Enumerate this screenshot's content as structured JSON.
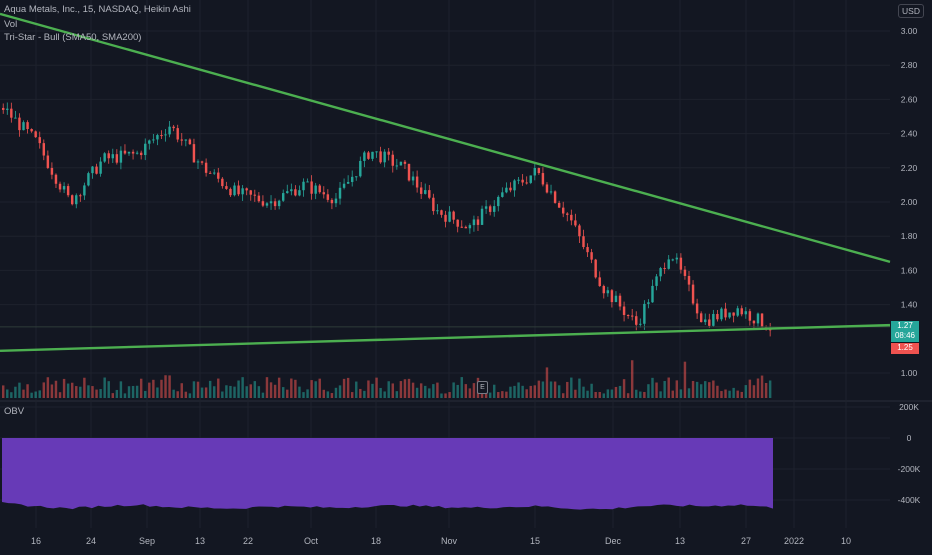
{
  "header": {
    "symbol_line": "Aqua Metals, Inc., 15, NASDAQ, Heikin Ashi",
    "volume_label": "Vol",
    "indicator_label": "Tri-Star - Bull (SMA50, SMA200)",
    "currency": "USD"
  },
  "price_tags": {
    "last_price": "1.27",
    "countdown": "08:46",
    "second_price": "1.25"
  },
  "earnings_marker": "E",
  "obv_pane": {
    "label": "OBV"
  },
  "colors": {
    "background": "#131722",
    "grid": "#1e222d",
    "up": "#26a69a",
    "down": "#ef5350",
    "trendline": "#4caf50",
    "obv_fill": "#673ab7",
    "axis_text": "#b2b5be",
    "horizontal_line": "#2e3d3a"
  },
  "chart_data": [
    {
      "type": "line",
      "title": "Aqua Metals, Inc., 15, NASDAQ, Heikin Ashi",
      "xlabel": "",
      "ylabel": "",
      "x_ticks": [
        "16",
        "24",
        "Sep",
        "13",
        "22",
        "Oct",
        "18",
        "Nov",
        "15",
        "Dec",
        "13",
        "27",
        "2022",
        "10"
      ],
      "y_ticks": [
        "3.00",
        "2.80",
        "2.60",
        "2.40",
        "2.20",
        "2.00",
        "1.80",
        "1.60",
        "1.40",
        "1.00"
      ],
      "ylim": [
        0.85,
        3.1
      ],
      "grid": true,
      "series": [
        {
          "style": "candles",
          "x": [
            "16",
            "",
            "24",
            "",
            "Sep",
            "",
            "13",
            "",
            "22",
            "",
            "Oct",
            "",
            "18",
            "",
            "Nov",
            "",
            "15",
            "",
            "Dec",
            "",
            "13",
            "",
            "27",
            ""
          ],
          "values": [
            2.55,
            2.35,
            2.0,
            2.25,
            2.28,
            2.45,
            2.2,
            2.05,
            2.0,
            2.1,
            2.02,
            2.3,
            2.2,
            1.95,
            1.85,
            2.05,
            2.18,
            1.9,
            1.5,
            1.28,
            1.72,
            1.3,
            1.38,
            1.27
          ]
        },
        {
          "style": "trendline",
          "x": [
            "start",
            "end"
          ],
          "values": [
            3.1,
            1.65
          ]
        },
        {
          "style": "trendline",
          "x": [
            "start",
            "end"
          ],
          "values": [
            1.13,
            1.28
          ]
        }
      ],
      "reference_lines": [
        1.27
      ]
    },
    {
      "type": "bar",
      "title": "Vol",
      "note_values": "volume bars per session, relative",
      "values": [
        0.3,
        0.6,
        0.4,
        0.8,
        0.3,
        0.5,
        0.35,
        0.7,
        0.4,
        0.45,
        0.3,
        0.9,
        0.5,
        0.35,
        0.4,
        0.6,
        0.55,
        0.4,
        1.0,
        0.7,
        0.5,
        0.4,
        0.8,
        0.6
      ]
    },
    {
      "type": "area",
      "title": "OBV",
      "y_ticks": [
        "200K",
        "0",
        "-200K",
        "-400K"
      ],
      "ylim": [
        -500000,
        250000
      ],
      "x_ticks": [
        "16",
        "24",
        "Sep",
        "13",
        "22",
        "Oct",
        "18",
        "Nov",
        "15",
        "Dec",
        "13",
        "27",
        "2022",
        "10"
      ],
      "values": [
        -420000,
        -440000,
        -455000,
        -440000,
        -430000,
        -445000,
        -450000,
        -455000,
        -440000,
        -445000,
        -450000,
        -440000,
        -435000,
        -445000,
        -450000,
        -445000,
        -440000,
        -455000,
        -460000,
        -440000,
        -435000,
        -440000,
        -430000,
        -450000
      ]
    }
  ]
}
